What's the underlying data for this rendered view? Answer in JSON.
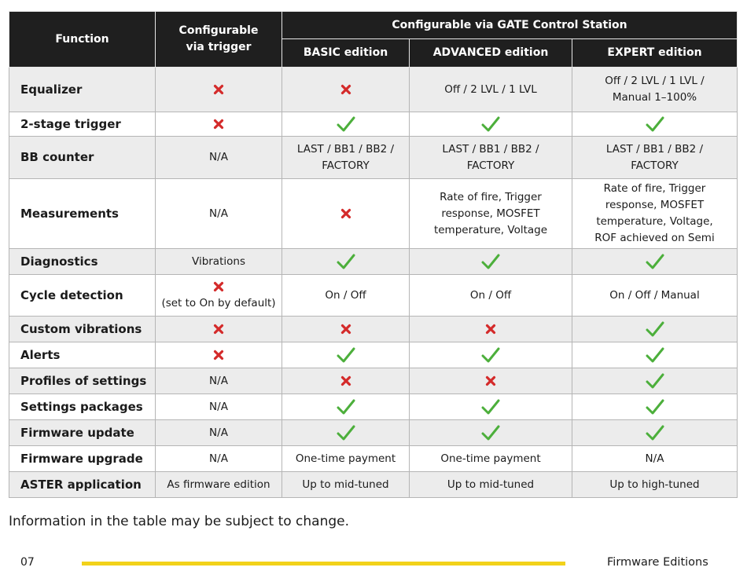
{
  "colors": {
    "header_bg": "#1f1f1f",
    "row_alt": "#ececec",
    "check": "#4caf3b",
    "cross": "#d42a2a",
    "footer_line": "#f2d21a"
  },
  "header": {
    "function": "Function",
    "trigger": "Configurable via trigger",
    "gate": "Configurable via GATE Control Station",
    "basic": "BASIC edition",
    "advanced": "ADVANCED edition",
    "expert": "EXPERT edition"
  },
  "rows": [
    {
      "name": "Equalizer",
      "cells": [
        {
          "icon": "cross-icon"
        },
        {
          "icon": "cross-icon"
        },
        {
          "text": [
            "Off / 2 LVL / 1 LVL"
          ]
        },
        {
          "text": [
            "Off / 2 LVL / 1 LVL /",
            "Manual 1–100%"
          ]
        }
      ]
    },
    {
      "name": "2-stage trigger",
      "cells": [
        {
          "icon": "cross-icon"
        },
        {
          "icon": "check-icon"
        },
        {
          "icon": "check-icon"
        },
        {
          "icon": "check-icon"
        }
      ]
    },
    {
      "name": "BB counter",
      "cells": [
        {
          "text": [
            "N/A"
          ]
        },
        {
          "text": [
            "LAST / BB1 / BB2 /",
            "FACTORY"
          ]
        },
        {
          "text": [
            "LAST / BB1 / BB2 /",
            "FACTORY"
          ]
        },
        {
          "text": [
            "LAST / BB1 / BB2 /",
            "FACTORY"
          ]
        }
      ]
    },
    {
      "name": "Measurements",
      "cells": [
        {
          "text": [
            "N/A"
          ]
        },
        {
          "icon": "cross-icon"
        },
        {
          "text": [
            "Rate of fire, Trigger",
            "response, MOSFET",
            "temperature, Voltage"
          ]
        },
        {
          "text": [
            "Rate of fire, Trigger",
            "response, MOSFET",
            "temperature, Voltage,",
            "ROF achieved on Semi"
          ]
        }
      ]
    },
    {
      "name": "Diagnostics",
      "cells": [
        {
          "text": [
            "Vibrations"
          ]
        },
        {
          "icon": "check-icon"
        },
        {
          "icon": "check-icon"
        },
        {
          "icon": "check-icon"
        }
      ]
    },
    {
      "name": "Cycle detection",
      "cells": [
        {
          "icon": "cross-icon",
          "text": [
            "(set to On by default)"
          ]
        },
        {
          "text": [
            "On / Off"
          ]
        },
        {
          "text": [
            "On / Off"
          ]
        },
        {
          "text": [
            "On / Off / Manual"
          ]
        }
      ]
    },
    {
      "name": "Custom vibrations",
      "cells": [
        {
          "icon": "cross-icon"
        },
        {
          "icon": "cross-icon"
        },
        {
          "icon": "cross-icon"
        },
        {
          "icon": "check-icon"
        }
      ]
    },
    {
      "name": "Alerts",
      "cells": [
        {
          "icon": "cross-icon"
        },
        {
          "icon": "check-icon"
        },
        {
          "icon": "check-icon"
        },
        {
          "icon": "check-icon"
        }
      ]
    },
    {
      "name": "Profiles of settings",
      "cells": [
        {
          "text": [
            "N/A"
          ]
        },
        {
          "icon": "cross-icon"
        },
        {
          "icon": "cross-icon"
        },
        {
          "icon": "check-icon"
        }
      ]
    },
    {
      "name": "Settings packages",
      "cells": [
        {
          "text": [
            "N/A"
          ]
        },
        {
          "icon": "check-icon"
        },
        {
          "icon": "check-icon"
        },
        {
          "icon": "check-icon"
        }
      ]
    },
    {
      "name": "Firmware update",
      "cells": [
        {
          "text": [
            "N/A"
          ]
        },
        {
          "icon": "check-icon"
        },
        {
          "icon": "check-icon"
        },
        {
          "icon": "check-icon"
        }
      ]
    },
    {
      "name": "Firmware upgrade",
      "cells": [
        {
          "text": [
            "N/A"
          ]
        },
        {
          "text": [
            "One-time payment"
          ]
        },
        {
          "text": [
            "One-time payment"
          ]
        },
        {
          "text": [
            "N/A"
          ]
        }
      ]
    },
    {
      "name": "ASTER application",
      "cells": [
        {
          "text": [
            "As firmware edition"
          ]
        },
        {
          "text": [
            "Up to mid-tuned"
          ]
        },
        {
          "text": [
            "Up to mid-tuned"
          ]
        },
        {
          "text": [
            "Up to high-tuned"
          ]
        }
      ]
    }
  ],
  "note": "Information in the table may be subject to change.",
  "footer": {
    "page": "07",
    "section": "Firmware Editions"
  }
}
